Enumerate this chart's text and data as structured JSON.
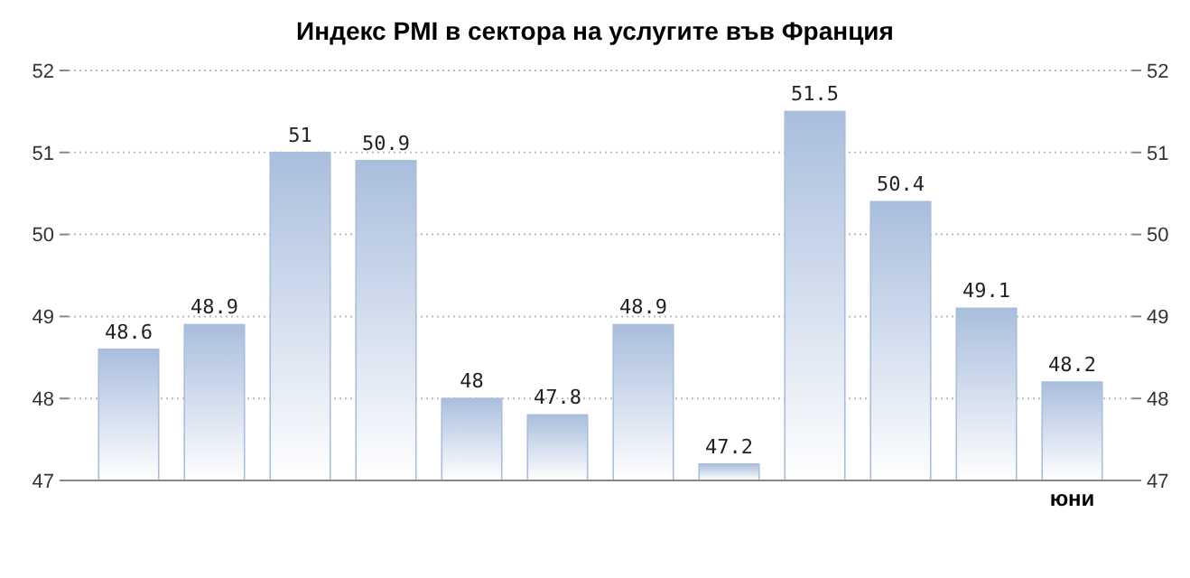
{
  "chart_data": {
    "type": "bar",
    "title": "Индекс PMI в сектора на услугите във Франция",
    "categories": [
      null,
      null,
      null,
      null,
      null,
      null,
      null,
      null,
      null,
      null,
      null,
      "юни"
    ],
    "values": [
      48.6,
      48.9,
      51,
      50.9,
      48,
      47.8,
      48.9,
      47.2,
      51.5,
      50.4,
      49.1,
      48.2
    ],
    "color": "#a9bedd",
    "ylim": [
      47,
      52
    ],
    "yticks": [
      47,
      48,
      49,
      50,
      51,
      52
    ],
    "y2lim": [
      47,
      52
    ],
    "y2ticks": [
      47,
      48,
      49,
      50,
      51,
      52
    ],
    "grid": "y",
    "data_labels": true
  }
}
